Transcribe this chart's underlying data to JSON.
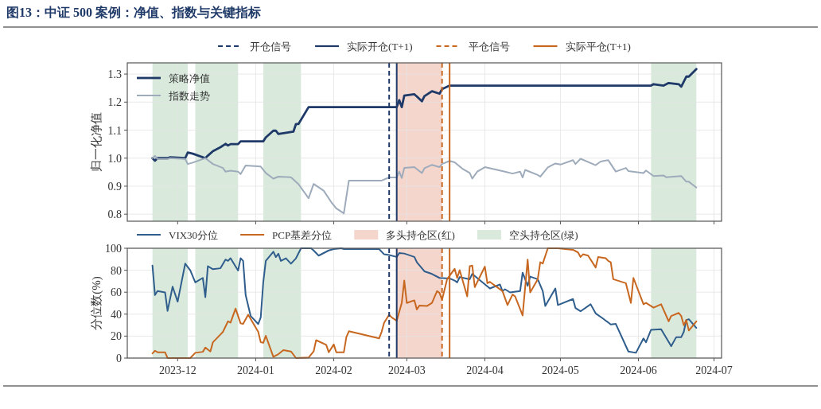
{
  "chart_data": [
    {
      "type": "line",
      "title": "图13：中证 500 案例：净值、指数与关键指标",
      "ylabel": "归一化净值",
      "xlim": [
        "2023-11-11",
        "2024-07-04"
      ],
      "xticks": [
        "2023-12",
        "2024-01",
        "2024-02",
        "2024-03",
        "2024-04",
        "2024-05",
        "2024-06",
        "2024-07"
      ],
      "ylim": [
        0.775,
        1.34
      ],
      "yticks": [
        0.8,
        0.9,
        {
          "value": 1,
          "label": "1.0"
        },
        1.1,
        1.2,
        1.3
      ],
      "grid": true,
      "legend": "top left",
      "tick_labels": "y",
      "series": [
        {
          "name": "策略净值",
          "color": "#1f3a68",
          "x": [
            "2023-11-21",
            "2023-11-22",
            "2023-11-23",
            "2023-11-27",
            "2023-11-28",
            "2023-12-04",
            "2023-12-05",
            "2023-12-07",
            "2023-12-12",
            "2023-12-13",
            "2023-12-15",
            "2023-12-18",
            "2023-12-20",
            "2023-12-21",
            "2023-12-22",
            "2023-12-25",
            "2023-12-26",
            "2024-01-04",
            "2024-01-05",
            "2024-01-08",
            "2024-01-09",
            "2024-01-10",
            "2024-01-16",
            "2024-01-17",
            "2024-01-18",
            "2024-01-22",
            "2024-02-26",
            "2024-02-27",
            "2024-02-28",
            "2024-02-29",
            "2024-03-04",
            "2024-03-05",
            "2024-03-07",
            "2024-03-08",
            "2024-03-11",
            "2024-03-14",
            "2024-03-15",
            "2024-03-18",
            "2024-06-06",
            "2024-06-07",
            "2024-06-11",
            "2024-06-13",
            "2024-06-17",
            "2024-06-18",
            "2024-06-20",
            "2024-06-21",
            "2024-06-24"
          ],
          "values": [
            1.0,
            0.991,
            1.0,
            1.0,
            1.003,
            1.0,
            1.02,
            1.016,
            1.0,
            1.009,
            1.025,
            1.039,
            1.051,
            1.045,
            1.05,
            1.05,
            1.06,
            1.06,
            1.074,
            1.098,
            1.098,
            1.086,
            1.095,
            1.122,
            1.122,
            1.182,
            1.182,
            1.207,
            1.182,
            1.223,
            1.228,
            1.22,
            1.203,
            1.221,
            1.239,
            1.23,
            1.246,
            1.259,
            1.259,
            1.264,
            1.259,
            1.268,
            1.264,
            1.255,
            1.291,
            1.291,
            1.318
          ]
        },
        {
          "name": "指数走势",
          "color": "#9eabbb",
          "x": [
            "2023-11-21",
            "2023-11-22",
            "2023-11-23",
            "2023-11-27",
            "2023-11-28",
            "2023-12-04",
            "2023-12-05",
            "2023-12-07",
            "2023-12-12",
            "2023-12-15",
            "2023-12-19",
            "2023-12-20",
            "2023-12-22",
            "2023-12-25",
            "2023-12-26",
            "2023-12-28",
            "2024-01-03",
            "2024-01-05",
            "2024-01-08",
            "2024-01-10",
            "2024-01-15",
            "2024-01-18",
            "2024-01-22",
            "2024-01-24",
            "2024-01-28",
            "2024-01-31",
            "2024-02-02",
            "2024-02-05",
            "2024-02-07",
            "2024-02-20",
            "2024-02-23",
            "2024-02-26",
            "2024-02-27",
            "2024-02-28",
            "2024-02-29",
            "2024-03-04",
            "2024-03-05",
            "2024-03-07",
            "2024-03-08",
            "2024-03-11",
            "2024-03-14",
            "2024-03-15",
            "2024-03-18",
            "2024-03-20",
            "2024-03-23",
            "2024-03-26",
            "2024-03-27",
            "2024-03-29",
            "2024-04-01",
            "2024-04-09",
            "2024-04-12",
            "2024-04-15",
            "2024-04-16",
            "2024-04-17",
            "2024-04-22",
            "2024-04-23",
            "2024-04-24",
            "2024-04-26",
            "2024-04-29",
            "2024-05-01",
            "2024-05-06",
            "2024-05-07",
            "2024-05-09",
            "2024-05-15",
            "2024-05-17",
            "2024-05-20",
            "2024-05-21",
            "2024-05-23",
            "2024-05-27",
            "2024-05-28",
            "2024-06-03",
            "2024-06-04",
            "2024-06-07",
            "2024-06-11",
            "2024-06-12",
            "2024-06-18",
            "2024-06-20",
            "2024-06-21",
            "2024-06-24"
          ],
          "values": [
            1.0,
            1.008,
            0.997,
            0.997,
            1.0,
            0.997,
            0.979,
            0.984,
            1.0,
            0.979,
            0.965,
            0.952,
            0.955,
            0.952,
            0.943,
            0.974,
            0.97,
            0.947,
            0.927,
            0.934,
            0.932,
            0.907,
            0.857,
            0.908,
            0.884,
            0.843,
            0.821,
            0.803,
            0.92,
            0.92,
            0.931,
            0.931,
            0.952,
            0.929,
            0.965,
            0.968,
            0.961,
            0.947,
            0.964,
            0.976,
            0.968,
            0.979,
            0.99,
            0.985,
            0.963,
            0.947,
            0.927,
            0.952,
            0.968,
            0.952,
            0.945,
            0.952,
            0.931,
            0.958,
            0.94,
            0.934,
            0.945,
            0.967,
            0.981,
            0.977,
            0.993,
            0.979,
            0.998,
            0.975,
            0.988,
            0.993,
            0.979,
            0.952,
            0.965,
            0.954,
            0.947,
            0.956,
            0.936,
            0.938,
            0.932,
            0.936,
            0.916,
            0.916,
            0.895
          ]
        }
      ],
      "ref_lines": [
        {
          "axis": "x",
          "value": "2024-02-23",
          "label": "开仓信号",
          "color": "#1f3a68",
          "line_style": "dashed"
        },
        {
          "axis": "x",
          "value": "2024-02-26",
          "label": "实际开仓(T+1)",
          "color": "#1f3a68",
          "line_style": "solid"
        },
        {
          "axis": "x",
          "value": "2024-03-15",
          "label": "平仓信号",
          "color": "#c8671f",
          "line_style": "dashed"
        },
        {
          "axis": "x",
          "value": "2024-03-18",
          "label": "实际平仓(T+1)",
          "color": "#c8671f",
          "line_style": "solid"
        }
      ],
      "bands": [
        {
          "axis": "x",
          "from": "2023-11-21",
          "to": "2023-12-05",
          "color": "#d9eadd"
        },
        {
          "axis": "x",
          "from": "2023-12-08",
          "to": "2023-12-25",
          "color": "#d9eadd"
        },
        {
          "axis": "x",
          "from": "2024-01-04",
          "to": "2024-01-19",
          "color": "#d9eadd"
        },
        {
          "axis": "x",
          "from": "2024-02-26",
          "to": "2024-03-15",
          "color": "#f5d6cd"
        },
        {
          "axis": "x",
          "from": "2024-06-06",
          "to": "2024-06-24",
          "color": "#d9eadd"
        }
      ]
    },
    {
      "type": "line",
      "ylabel": "分位数(%)",
      "xlim": [
        "2023-11-11",
        "2024-07-04"
      ],
      "xticks": [
        "2023-12",
        "2024-01",
        "2024-02",
        "2024-03",
        "2024-04",
        "2024-05",
        "2024-06",
        "2024-07"
      ],
      "ylim": [
        0,
        100
      ],
      "yticks": [
        0,
        20,
        40,
        60,
        80,
        100
      ],
      "grid": true,
      "legend": "top",
      "series": [
        {
          "name": "VIX30分位",
          "color": "#2f5d8c",
          "x": [
            "2023-11-21",
            "2023-11-22",
            "2023-11-23",
            "2023-11-26",
            "2023-11-27",
            "2023-11-29",
            "2023-12-01",
            "2023-12-04",
            "2023-12-06",
            "2023-12-08",
            "2023-12-11",
            "2023-12-12",
            "2023-12-13",
            "2023-12-15",
            "2023-12-18",
            "2023-12-20",
            "2023-12-21",
            "2023-12-22",
            "2023-12-25",
            "2023-12-26",
            "2023-12-27",
            "2023-12-28",
            "2023-12-30",
            "2024-01-02",
            "2024-01-03",
            "2024-01-04",
            "2024-01-05",
            "2024-01-08",
            "2024-01-09",
            "2024-01-10",
            "2024-01-11",
            "2024-01-13",
            "2024-01-15",
            "2024-01-17",
            "2024-01-19",
            "2024-01-23",
            "2024-01-24",
            "2024-01-26",
            "2024-01-30",
            "2024-02-01",
            "2024-02-04",
            "2024-02-05",
            "2024-02-19",
            "2024-02-21",
            "2024-02-23",
            "2024-02-26",
            "2024-02-27",
            "2024-02-29",
            "2024-03-04",
            "2024-03-05",
            "2024-03-08",
            "2024-03-11",
            "2024-03-14",
            "2024-03-18",
            "2024-03-20",
            "2024-03-21",
            "2024-03-22",
            "2024-03-26",
            "2024-03-27",
            "2024-04-03",
            "2024-04-07",
            "2024-04-08",
            "2024-04-09",
            "2024-04-11",
            "2024-04-15",
            "2024-04-16",
            "2024-04-18",
            "2024-04-19",
            "2024-04-22",
            "2024-04-24",
            "2024-04-25",
            "2024-04-29",
            "2024-04-30",
            "2024-05-06",
            "2024-05-07",
            "2024-05-09",
            "2024-05-13",
            "2024-05-15",
            "2024-05-18",
            "2024-05-21",
            "2024-05-23",
            "2024-05-28",
            "2024-05-31",
            "2024-06-03",
            "2024-06-04",
            "2024-06-06",
            "2024-06-10",
            "2024-06-14",
            "2024-06-16",
            "2024-06-18",
            "2024-06-19",
            "2024-06-20",
            "2024-06-21",
            "2024-06-24"
          ],
          "values": [
            84.2,
            57.4,
            61,
            59.8,
            43,
            65,
            51.4,
            86,
            80,
            68.9,
            73,
            55.5,
            83.7,
            80.9,
            81.8,
            89.7,
            88.5,
            90.9,
            79.7,
            90.9,
            88.5,
            57.4,
            38.3,
            31,
            37,
            69,
            88.5,
            96.9,
            92,
            95,
            88.5,
            90.9,
            86,
            90.9,
            100,
            100,
            98,
            93.3,
            98,
            99.3,
            100,
            99.3,
            99.3,
            94.5,
            93.8,
            92.1,
            95.7,
            95.2,
            92.1,
            87.3,
            79,
            76.6,
            73,
            72.5,
            70.6,
            68.9,
            73.7,
            71.8,
            76.6,
            63.4,
            67,
            61,
            62.7,
            59.8,
            61,
            77.8,
            65.8,
            74.2,
            71.8,
            61,
            47.4,
            63.4,
            48.3,
            53.8,
            45.5,
            42.6,
            49,
            40.7,
            35.9,
            30.6,
            31.1,
            6,
            4.8,
            17.9,
            14.4,
            25.8,
            26.3,
            10.8,
            19.1,
            19.1,
            23.9,
            34.7,
            35.4,
            27.5
          ]
        },
        {
          "name": "PCP基差分位",
          "color": "#c8671f",
          "x": [
            "2023-11-21",
            "2023-11-22",
            "2023-11-23",
            "2023-11-26",
            "2023-11-27",
            "2023-12-06",
            "2023-12-08",
            "2023-12-11",
            "2023-12-12",
            "2023-12-14",
            "2023-12-15",
            "2023-12-18",
            "2023-12-19",
            "2023-12-21",
            "2023-12-22",
            "2023-12-24",
            "2023-12-26",
            "2023-12-27",
            "2023-12-29",
            "2024-01-02",
            "2024-01-03",
            "2024-01-04",
            "2024-01-05",
            "2024-01-08",
            "2024-01-10",
            "2024-01-12",
            "2024-01-15",
            "2024-01-17",
            "2024-01-22",
            "2024-01-24",
            "2024-01-25",
            "2024-01-29",
            "2024-01-30",
            "2024-02-01",
            "2024-02-02",
            "2024-02-05",
            "2024-02-06",
            "2024-02-07",
            "2024-02-19",
            "2024-02-20",
            "2024-02-21",
            "2024-02-23",
            "2024-02-24",
            "2024-02-26",
            "2024-02-28",
            "2024-02-29",
            "2024-03-01",
            "2024-03-04",
            "2024-03-05",
            "2024-03-06",
            "2024-03-09",
            "2024-03-11",
            "2024-03-13",
            "2024-03-14",
            "2024-03-15",
            "2024-03-17",
            "2024-03-20",
            "2024-03-21",
            "2024-03-22",
            "2024-03-25",
            "2024-03-26",
            "2024-03-27",
            "2024-03-28",
            "2024-04-01",
            "2024-04-02",
            "2024-04-03",
            "2024-04-08",
            "2024-04-10",
            "2024-04-12",
            "2024-04-13",
            "2024-04-16",
            "2024-04-18",
            "2024-04-19",
            "2024-04-22",
            "2024-04-23",
            "2024-04-24",
            "2024-04-26",
            "2024-04-30",
            "2024-05-06",
            "2024-05-08",
            "2024-05-09",
            "2024-05-10",
            "2024-05-12",
            "2024-05-15",
            "2024-05-16",
            "2024-05-19",
            "2024-05-20",
            "2024-05-21",
            "2024-05-22",
            "2024-05-27",
            "2024-05-29",
            "2024-05-30",
            "2024-06-03",
            "2024-06-04",
            "2024-06-07",
            "2024-06-10",
            "2024-06-13",
            "2024-06-14",
            "2024-06-17",
            "2024-06-18",
            "2024-06-19",
            "2024-06-20",
            "2024-06-21",
            "2024-06-24"
          ],
          "values": [
            4.3,
            6.7,
            5.3,
            5.3,
            0,
            0,
            4.8,
            5.7,
            9.6,
            6,
            14.4,
            21.5,
            23.9,
            33.5,
            32.3,
            45,
            31.6,
            31.1,
            39.5,
            23.9,
            14.4,
            13.9,
            20.3,
            1.2,
            3.6,
            7.2,
            6,
            0,
            0.5,
            6,
            16.3,
            12,
            5.3,
            12.4,
            5.3,
            5.3,
            19.1,
            24.4,
            17.9,
            23.9,
            32.3,
            39.5,
            37,
            34,
            50.2,
            70.6,
            50.2,
            52.6,
            44.3,
            47.8,
            47.4,
            50.2,
            61,
            59.3,
            53.1,
            71.8,
            81.3,
            73,
            80.1,
            56.2,
            83.7,
            84.2,
            64.6,
            83.3,
            68.2,
            69.4,
            61,
            48.3,
            57.9,
            56.2,
            38.8,
            89.7,
            59.8,
            71.8,
            87.3,
            86.1,
            100,
            100,
            98.6,
            96.2,
            92.1,
            94.5,
            93.3,
            82.5,
            92.1,
            90.9,
            88.5,
            87.3,
            71.8,
            68.2,
            50.2,
            73,
            49,
            50.2,
            45.9,
            49,
            33.5,
            38.3,
            41.1,
            38.3,
            29.9,
            34.7,
            25.1,
            33.5
          ]
        }
      ],
      "ref_lines": [
        {
          "axis": "x",
          "value": "2024-02-23",
          "color": "#1f3a68",
          "line_style": "dashed"
        },
        {
          "axis": "x",
          "value": "2024-02-26",
          "color": "#1f3a68",
          "line_style": "solid"
        },
        {
          "axis": "x",
          "value": "2024-03-15",
          "color": "#c8671f",
          "line_style": "dashed"
        },
        {
          "axis": "x",
          "value": "2024-03-18",
          "color": "#c8671f",
          "line_style": "solid"
        }
      ],
      "bands": [
        {
          "axis": "x",
          "from": "2024-02-26",
          "to": "2024-03-15",
          "color": "#f5d6cd",
          "label": "多头持仓区(红)"
        },
        {
          "axis": "x",
          "from": "2023-11-21",
          "to": "2023-12-05",
          "color": "#d9eadd",
          "label": "空头持仓区(绿)"
        },
        {
          "axis": "x",
          "from": "2023-12-08",
          "to": "2023-12-25",
          "color": "#d9eadd"
        },
        {
          "axis": "x",
          "from": "2024-01-04",
          "to": "2024-01-19",
          "color": "#d9eadd"
        },
        {
          "axis": "x",
          "from": "2024-06-06",
          "to": "2024-06-24",
          "color": "#d9eadd"
        }
      ]
    }
  ]
}
